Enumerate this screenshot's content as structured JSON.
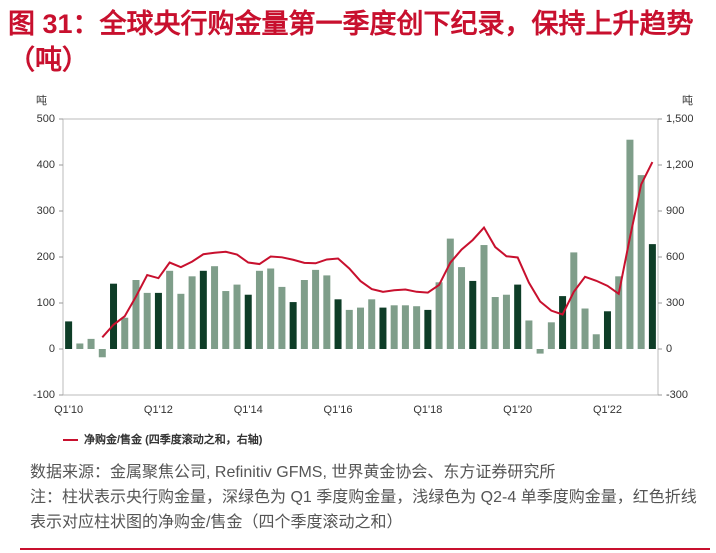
{
  "title": "图 31：全球央行购金量第一季度创下纪录，保持上升趋势（吨）",
  "source": "数据来源：金属聚焦公司, Refinitiv GFMS, 世界黄金协会、东方证券研究所",
  "note": "注：柱状表示央行购金量，深绿色为 Q1 季度购金量，浅绿色为 Q2-4 单季度购金量，红色折线表示对应柱状图的净购金/售金（四个季度滚动之和）",
  "chart_data": {
    "type": "bar",
    "y_unit": "吨",
    "y2_unit": "吨",
    "categories": [
      "Q1'10",
      null,
      null,
      null,
      null,
      null,
      null,
      null,
      "Q1'12",
      null,
      null,
      null,
      null,
      null,
      null,
      null,
      "Q1'14",
      null,
      null,
      null,
      null,
      null,
      null,
      null,
      "Q1'16",
      null,
      null,
      null,
      null,
      null,
      null,
      null,
      "Q1'18",
      null,
      null,
      null,
      null,
      null,
      null,
      null,
      "Q1'20",
      null,
      null,
      null,
      null,
      null,
      null,
      null,
      "Q1'22",
      null,
      null,
      null,
      null
    ],
    "values": [
      60,
      12,
      22,
      -18,
      142,
      68,
      150,
      122,
      122,
      170,
      120,
      158,
      170,
      180,
      126,
      140,
      118,
      170,
      175,
      135,
      102,
      150,
      172,
      160,
      108,
      85,
      90,
      108,
      90,
      95,
      95,
      93,
      85,
      145,
      240,
      178,
      148,
      226,
      113,
      118,
      140,
      62,
      -10,
      58,
      115,
      210,
      88,
      32,
      82,
      158,
      455,
      378,
      228
    ],
    "bar_colors": [
      "#0e3d27",
      "#7f9e8a",
      "#7f9e8a",
      "#7f9e8a",
      "#0e3d27",
      "#7f9e8a",
      "#7f9e8a",
      "#7f9e8a",
      "#0e3d27",
      "#7f9e8a",
      "#7f9e8a",
      "#7f9e8a",
      "#0e3d27",
      "#7f9e8a",
      "#7f9e8a",
      "#7f9e8a",
      "#0e3d27",
      "#7f9e8a",
      "#7f9e8a",
      "#7f9e8a",
      "#0e3d27",
      "#7f9e8a",
      "#7f9e8a",
      "#7f9e8a",
      "#0e3d27",
      "#7f9e8a",
      "#7f9e8a",
      "#7f9e8a",
      "#0e3d27",
      "#7f9e8a",
      "#7f9e8a",
      "#7f9e8a",
      "#0e3d27",
      "#7f9e8a",
      "#7f9e8a",
      "#7f9e8a",
      "#0e3d27",
      "#7f9e8a",
      "#7f9e8a",
      "#7f9e8a",
      "#0e3d27",
      "#7f9e8a",
      "#7f9e8a",
      "#7f9e8a",
      "#0e3d27",
      "#7f9e8a",
      "#7f9e8a",
      "#7f9e8a",
      "#0e3d27",
      "#7f9e8a",
      "#7f9e8a",
      "#7f9e8a",
      "#0e3d27"
    ],
    "series": [
      {
        "name": "净购金/售金 (四季度滚动之和，右轴)",
        "type": "line",
        "axis": "y2",
        "color": "#c8102e",
        "values": [
          null,
          null,
          null,
          76,
          158,
          214,
          342,
          482,
          462,
          564,
          534,
          570,
          618,
          628,
          634,
          616,
          564,
          554,
          603,
          598,
          582,
          562,
          559,
          584,
          590,
          525,
          443,
          391,
          373,
          383,
          388,
          373,
          368,
          418,
          563,
          648,
          711,
          792,
          665,
          605,
          597,
          433,
          310,
          250,
          225,
          373,
          471,
          445,
          412,
          360,
          727,
          1073,
          1219
        ]
      }
    ],
    "ylim": [
      -100,
      500
    ],
    "yticks": [
      -100,
      0,
      100,
      200,
      300,
      400,
      500
    ],
    "y2lim": [
      -300,
      1500
    ],
    "y2ticks": [
      -300,
      0,
      300,
      600,
      900,
      {
        "value": 1200,
        "label": "1,200"
      },
      {
        "value": 1500,
        "label": "1,500"
      }
    ],
    "legend": "bottom-left"
  }
}
